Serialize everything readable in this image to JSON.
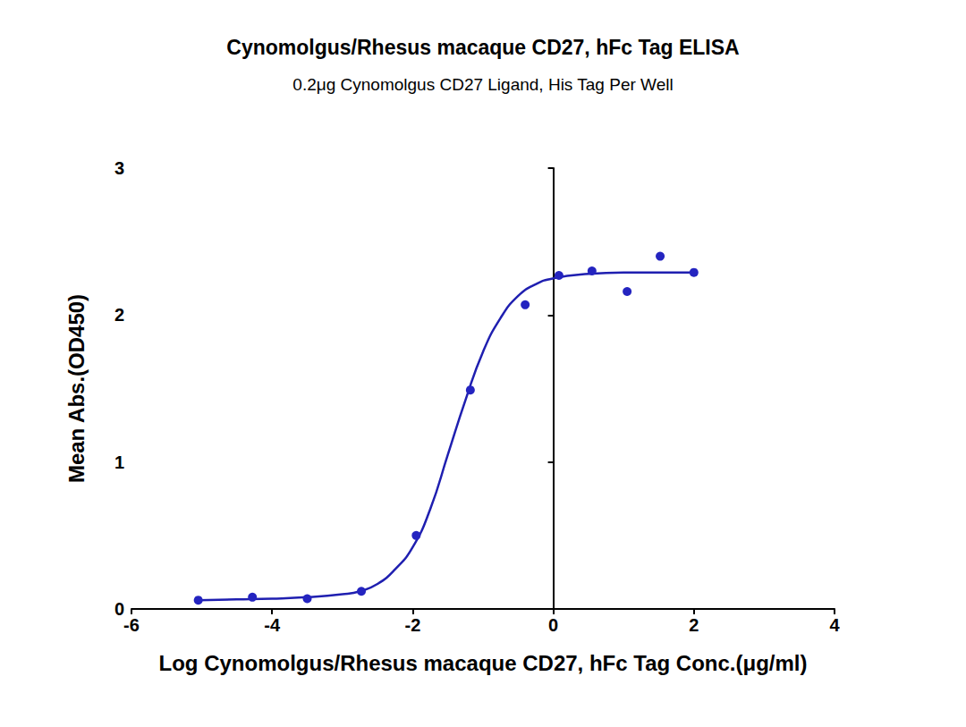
{
  "chart_data": {
    "type": "scatter",
    "title": "Cynomolgus/Rhesus macaque CD27, hFc Tag ELISA",
    "subtitle": "0.2μg Cynomolgus CD27 Ligand, His Tag Per Well",
    "x_label": "Log Cynomolgus/Rhesus macaque CD27, hFc Tag Conc.(μg/ml)",
    "y_label": "Mean Abs.(OD450)",
    "xlim": [
      -6,
      4
    ],
    "xticks": [
      -6,
      -4,
      -2,
      0,
      2,
      4
    ],
    "ylim": [
      0,
      3
    ],
    "yticks": [
      0,
      1,
      2,
      3
    ],
    "grid": false,
    "series": [
      {
        "type": "scatter",
        "marker": "circle",
        "color": "#2424c0",
        "x": [
          -5.05,
          -4.28,
          -3.5,
          -2.73,
          -1.95,
          -1.18,
          -0.4,
          0.08,
          0.55,
          1.05,
          1.52,
          2.0
        ],
        "values": [
          0.06,
          0.08,
          0.07,
          0.12,
          0.5,
          1.49,
          2.07,
          2.27,
          2.3,
          2.16,
          2.4,
          2.29
        ]
      },
      {
        "type": "line",
        "line_style": "solid",
        "color": "#1f1fb0",
        "x": [
          -5.05,
          -4.5,
          -4,
          -3.5,
          -3,
          -2.75,
          -2.5,
          -2.25,
          -2,
          -1.75,
          -1.5,
          -1.25,
          -1,
          -0.75,
          -0.5,
          -0.25,
          0,
          0.5,
          1,
          1.5,
          2
        ],
        "values": [
          0.06,
          0.065,
          0.07,
          0.08,
          0.1,
          0.12,
          0.17,
          0.27,
          0.42,
          0.68,
          1.05,
          1.42,
          1.75,
          1.98,
          2.13,
          2.21,
          2.25,
          2.28,
          2.29,
          2.29,
          2.29
        ]
      }
    ]
  }
}
